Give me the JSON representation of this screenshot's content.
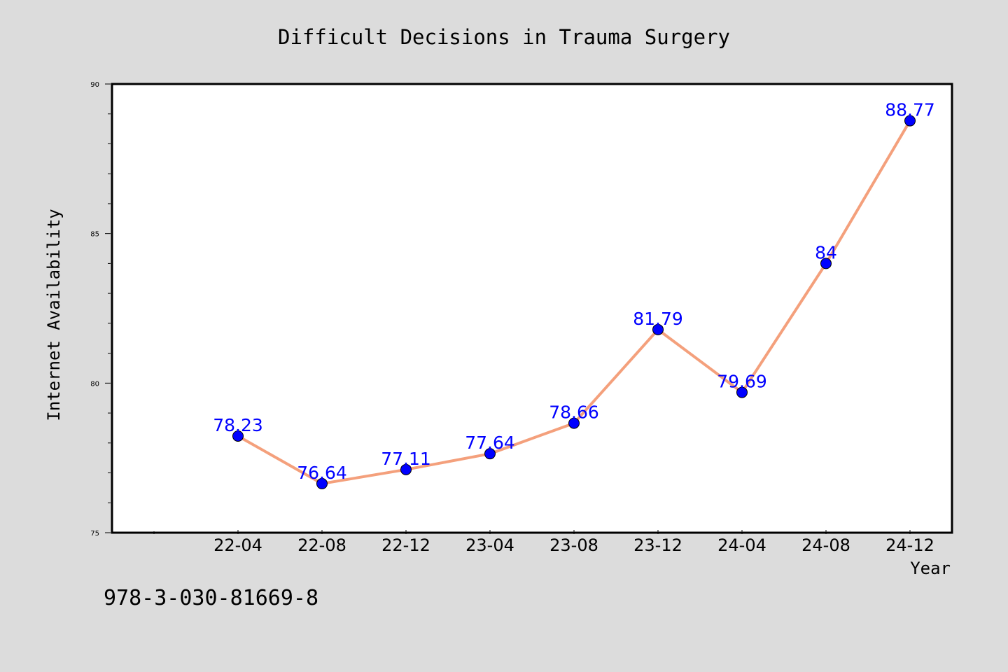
{
  "footnote": "978-3-030-81669-8",
  "colors": {
    "background": "#dcdcdc",
    "plot_background": "#ffffff",
    "line": "#f4a07c",
    "marker": "#0000ff",
    "data_label": "#0000ff"
  },
  "chart_data": {
    "type": "line",
    "title": "Difficult Decisions in Trauma Surgery",
    "xlabel": "Year",
    "ylabel": "Internet Availability",
    "categories": [
      "22-04",
      "22-08",
      "22-12",
      "23-04",
      "23-08",
      "23-12",
      "24-04",
      "24-08",
      "24-12"
    ],
    "series": [
      {
        "values": [
          78.23,
          76.64,
          77.11,
          77.64,
          78.66,
          81.79,
          79.69,
          84,
          88.77
        ],
        "labels": [
          "78.23",
          "76.64",
          "77.11",
          "77.64",
          "78.66",
          "81.79",
          "79.69",
          "84",
          "88.77"
        ]
      }
    ],
    "ylim": [
      75,
      90
    ],
    "yticks": [
      "75",
      "80",
      "85",
      "90"
    ],
    "grid": false,
    "legend": "none"
  }
}
